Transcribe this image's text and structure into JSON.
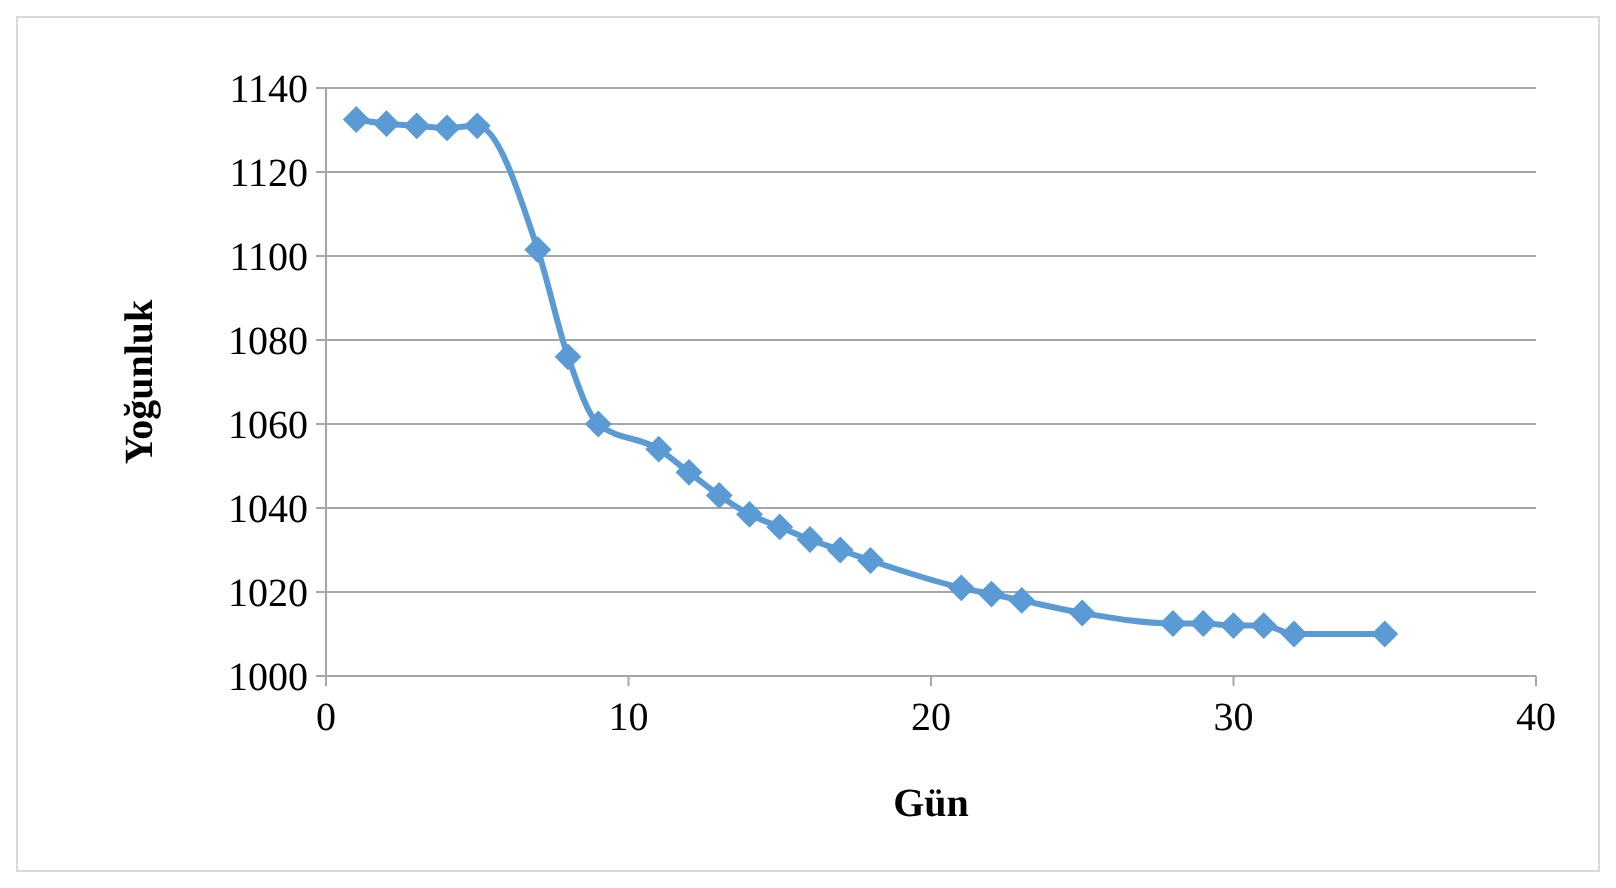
{
  "chart_data": {
    "type": "line",
    "xlabel": "Gün",
    "ylabel": "Yoğunluk",
    "x": [
      1,
      2,
      3,
      4,
      5,
      7,
      8,
      9,
      11,
      12,
      13,
      14,
      15,
      16,
      17,
      18,
      21,
      22,
      23,
      25,
      28,
      29,
      30,
      31,
      32,
      35
    ],
    "series": [
      {
        "color": "#5b9bd5",
        "values": [
          1132.5,
          1131.5,
          1131,
          1130.5,
          1131,
          1101.5,
          1076,
          1060,
          1054,
          1048.5,
          1043,
          1038.5,
          1035.5,
          1032.5,
          1030,
          1027.5,
          1021,
          1019.5,
          1018,
          1015,
          1012.5,
          1012.5,
          1012,
          1012,
          1010,
          1010
        ]
      }
    ],
    "xlim": [
      0,
      40
    ],
    "xticks": [
      0,
      10,
      20,
      30,
      40
    ],
    "ylim": [
      1000,
      1140
    ],
    "yticks": [
      1000,
      1020,
      1040,
      1060,
      1080,
      1100,
      1120,
      1140
    ],
    "grid": "y",
    "marker": "diamond",
    "line_style": "solid"
  }
}
